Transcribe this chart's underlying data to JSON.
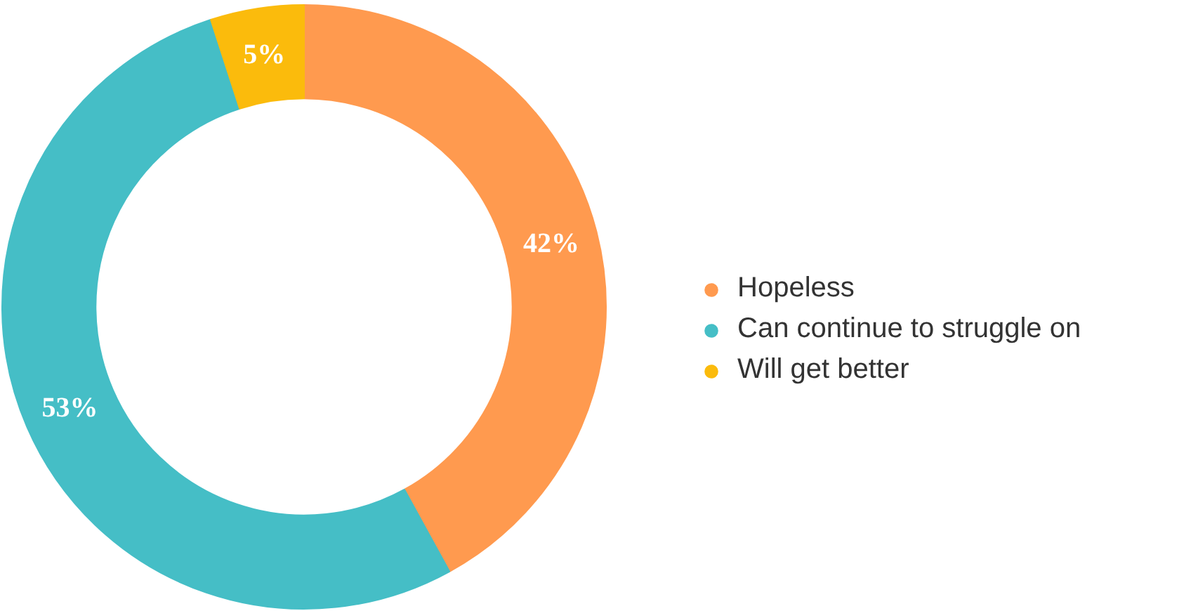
{
  "chart_data": {
    "type": "donut",
    "categories": [
      "Hopeless",
      "Can continue to struggle on",
      "Will get better"
    ],
    "values": [
      42,
      53,
      5
    ],
    "colors": [
      "#ff9a4f",
      "#45bec6",
      "#fbbb0c"
    ],
    "value_labels": [
      "42%",
      "53%",
      "5%"
    ],
    "legend": "right"
  }
}
